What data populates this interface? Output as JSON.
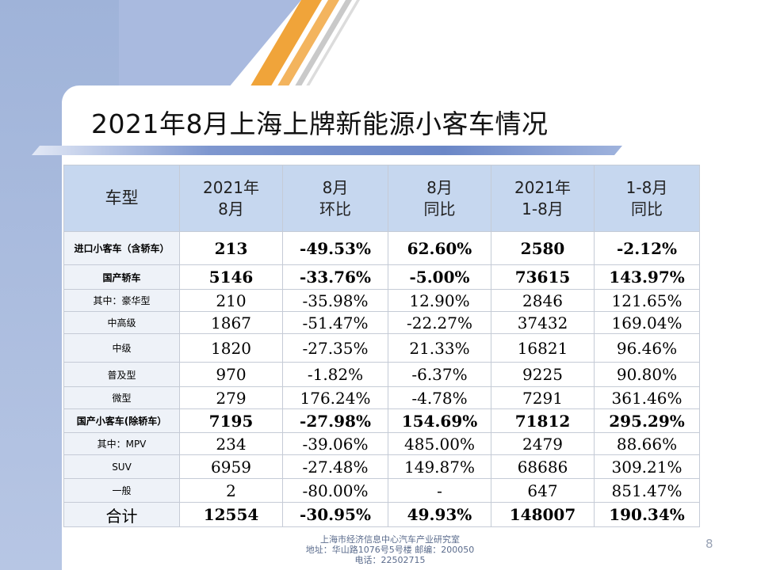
{
  "slide": {
    "title": "2021年8月上海上牌新能源小客车情况",
    "page_number": "8",
    "footer": {
      "line1": "上海市经济信息中心汽车产业研究室",
      "line2": "地址：华山路1076号5号楼    邮编：200050",
      "line3": "电话：22502715"
    }
  },
  "table": {
    "headers": [
      "车型",
      "2021年\n8月",
      "8月\n环比",
      "8月\n同比",
      "2021年\n1-8月",
      "1-8月\n同比"
    ],
    "rows": [
      {
        "name": "进口小客车（含轿车）",
        "style": "bold",
        "cells": [
          "213",
          "-49.53%",
          "62.60%",
          "2580",
          "-2.12%"
        ]
      },
      {
        "name": "国产轿车",
        "style": "bold",
        "cells": [
          "5146",
          "-33.76%",
          "-5.00%",
          "73615",
          "143.97%"
        ]
      },
      {
        "name": "其中：豪华型",
        "style": "normal",
        "cells": [
          "210",
          "-35.98%",
          "12.90%",
          "2846",
          "121.65%"
        ]
      },
      {
        "name": "中高级",
        "style": "normal",
        "cells": [
          "1867",
          "-51.47%",
          "-22.27%",
          "37432",
          "169.04%"
        ]
      },
      {
        "name": "中级",
        "style": "normal",
        "cells": [
          "1820",
          "-27.35%",
          "21.33%",
          "16821",
          "96.46%"
        ]
      },
      {
        "name": "普及型",
        "style": "normal",
        "cells": [
          "970",
          "-1.82%",
          "-6.37%",
          "9225",
          "90.80%"
        ]
      },
      {
        "name": "微型",
        "style": "normal",
        "cells": [
          "279",
          "176.24%",
          "-4.78%",
          "7291",
          "361.46%"
        ]
      },
      {
        "name": "国产小客车(除轿车）",
        "style": "bold",
        "cells": [
          "7195",
          "-27.98%",
          "154.69%",
          "71812",
          "295.29%"
        ]
      },
      {
        "name": "其中：MPV",
        "style": "normal",
        "cells": [
          "234",
          "-39.06%",
          "485.00%",
          "2479",
          "88.66%"
        ]
      },
      {
        "name": "SUV",
        "style": "normal",
        "cells": [
          "6959",
          "-27.48%",
          "149.87%",
          "68686",
          "309.21%"
        ]
      },
      {
        "name": "一般",
        "style": "normal",
        "cells": [
          "2",
          "-80.00%",
          "-",
          "647",
          "851.47%"
        ]
      },
      {
        "name": "合计",
        "style": "total",
        "cells": [
          "12554",
          "-30.95%",
          "49.93%",
          "148007",
          "190.34%"
        ]
      }
    ]
  },
  "colors": {
    "header_bg": "#c6d7ef",
    "name_col_bg": "#eef2f8",
    "accent_orange": "#f0a43a",
    "accent_blue": "#6b87c7"
  }
}
